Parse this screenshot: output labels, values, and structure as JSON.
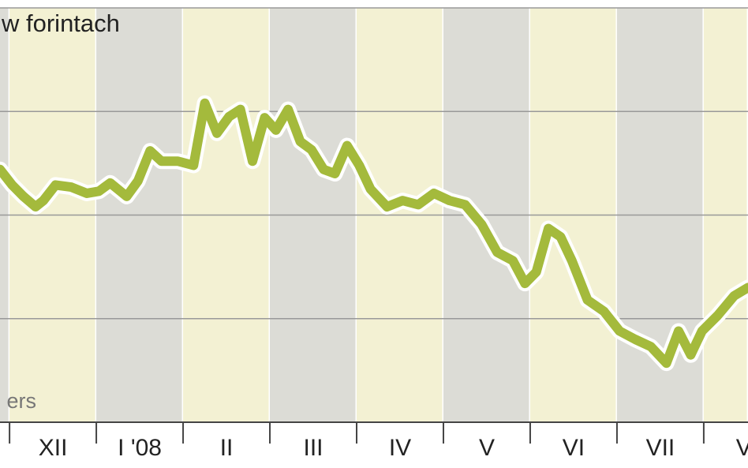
{
  "chart_data": {
    "type": "line",
    "title": "w forintach",
    "source": "ers",
    "categories": [
      null,
      "XII",
      "I '08",
      "II",
      "III",
      "IV",
      "V",
      "VI",
      "VII",
      "VI"
    ],
    "band_colors": [
      "#dcdcd6",
      "#f3f1d3"
    ],
    "x": [
      -0.11,
      0.03,
      0.16,
      0.3,
      0.39,
      0.53,
      0.71,
      0.89,
      1.03,
      1.16,
      1.35,
      1.48,
      1.62,
      1.75,
      1.94,
      2.12,
      2.25,
      2.39,
      2.53,
      2.66,
      2.8,
      2.94,
      3.07,
      3.21,
      3.35,
      3.48,
      3.62,
      3.75,
      3.89,
      4.03,
      4.16,
      4.35,
      4.53,
      4.71,
      4.89,
      5.07,
      5.25,
      5.44,
      5.62,
      5.8,
      5.94,
      6.07,
      6.21,
      6.35,
      6.48,
      6.66,
      6.85,
      7.03,
      7.21,
      7.39,
      7.57,
      7.71,
      7.85,
      7.98,
      8.16,
      8.35,
      8.51
    ],
    "series": [
      {
        "color": "#a4ba3c",
        "values": [
          2.44,
          2.29,
          2.18,
          2.08,
          2.14,
          2.29,
          2.27,
          2.21,
          2.23,
          2.31,
          2.18,
          2.33,
          2.62,
          2.52,
          2.52,
          2.48,
          3.08,
          2.79,
          2.95,
          3.02,
          2.52,
          2.94,
          2.82,
          3.02,
          2.71,
          2.63,
          2.44,
          2.4,
          2.67,
          2.48,
          2.25,
          2.08,
          2.14,
          2.1,
          2.21,
          2.14,
          2.1,
          1.91,
          1.64,
          1.56,
          1.34,
          1.45,
          1.87,
          1.79,
          1.56,
          1.18,
          1.07,
          0.88,
          0.8,
          0.73,
          0.57,
          0.88,
          0.65,
          0.88,
          1.03,
          1.22,
          1.3
        ]
      }
    ],
    "xlim": [
      -0.11,
      8.51
    ],
    "ylim": [
      0,
      4
    ],
    "yticks": [
      1,
      2,
      3,
      4
    ],
    "grid": true
  }
}
